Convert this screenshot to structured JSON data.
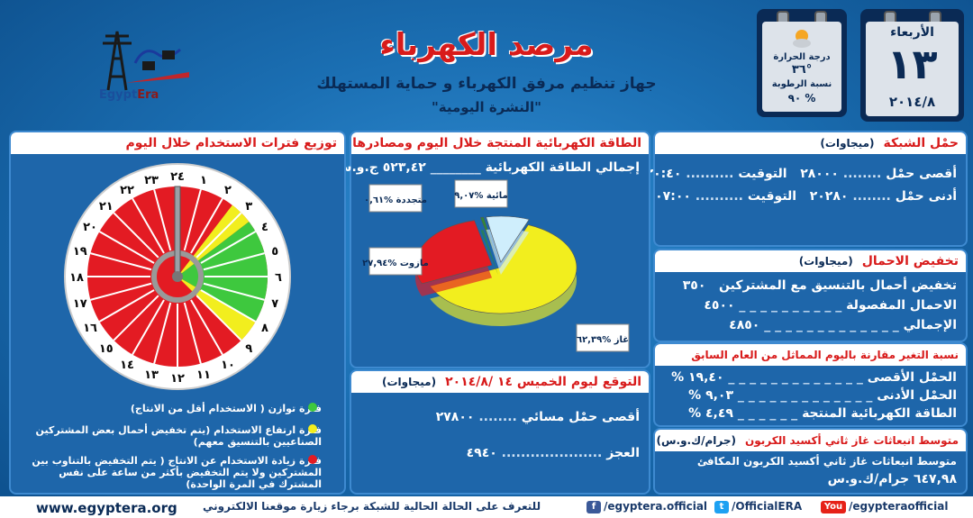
{
  "header": {
    "title": "مرصد الكهرباء",
    "subtitle": "جهاز تنظيم مرفق الكهرباء و حماية المستهلك",
    "bulletin": "\"النشرة اليومية\"",
    "logo_text_a": "Egypt",
    "logo_text_b": "Era"
  },
  "calendar": {
    "day_name": "الأربعاء",
    "day": "١٣",
    "month_year": "٢٠١٤/٨"
  },
  "weather": {
    "temp_label": "درجة الحرارة",
    "temp_value": "٣٦°",
    "humidity_label": "نسبة الرطوبة",
    "humidity_value": "٩٠ %",
    "icon": "sun-cloud-icon"
  },
  "grid_load": {
    "title": "حمْل الشبكة",
    "unit": "(ميجاوات)",
    "max_label": "أقصى حمْل",
    "max_value": "٢٨٠٠٠",
    "max_time_label": "التوقيت",
    "max_time": "٢٠:٤٠",
    "min_label": "أدنى حمْل",
    "min_value": "٢٠٢٨٠",
    "min_time_label": "التوقيت",
    "min_time": "٠٧:٠٠"
  },
  "load_shedding": {
    "title": "تخفيض الاحمال",
    "unit": "(ميجاوات)",
    "coord_label": "تخفيض أحمال بالتنسيق مع المشتركين",
    "coord_value": "٣٥٠",
    "cut_label": "الاحمال المفصولة",
    "cut_value": "٤٥٠٠",
    "total_label": "الإجمالي",
    "total_value": "٤٨٥٠"
  },
  "change": {
    "title": "نسبة التغير مقارنة باليوم المماثل من العام السابق",
    "max_label": "الحمْل الأقصى",
    "max_value": "١٩,٤٠ %",
    "min_label": "الحمْل الأدنى",
    "min_value": "٩,٠٣ %",
    "energy_label": "الطاقة الكهربائية المنتجة",
    "energy_value": "٤,٤٩ %"
  },
  "co2": {
    "title": "متوسط انبعاثات غاز ثاني أكسيد الكربون",
    "unit": "(جرام/ك.و.س)",
    "line": "متوسط انبعاثات غاز ثاني أكسيد الكربون المكافئ",
    "value": "٦٤٧,٩٨ جرام/ك.و.س"
  },
  "energy": {
    "title": "الطاقة الكهربائية المنتجة خلال اليوم ومصادرها",
    "total_label": "إجمالي الطاقة الكهربائية",
    "total_value": "٥٢٣,٤٢ ج.و.س"
  },
  "chart_data": {
    "type": "pie",
    "title": "الطاقة الكهربائية المنتجة خلال اليوم ومصادرها",
    "categories": [
      "غاز",
      "مازوت",
      "متجددة",
      "مائية"
    ],
    "values": [
      62.39,
      27.94,
      0.61,
      9.07
    ],
    "labels": [
      "غاز %٦٢,٣٩",
      "مازوت %٢٧,٩٤",
      "متجددة %٠,٦١",
      "مائية %٩,٠٧"
    ],
    "colors": [
      "#f2ee1e",
      "#e31b23",
      "#2e8b3a",
      "#cfeefc"
    ]
  },
  "forecast": {
    "title": "التوقع ليوم الخميس ١٤ /٢٠١٤/٨",
    "unit": "(ميجاوات)",
    "peak_label": "أقصى حمْل مسائي",
    "peak_value": "٢٧٨٠٠",
    "deficit_label": "العجز",
    "deficit_value": "٤٩٤٠"
  },
  "clock": {
    "title": "توزيع فترات الاستخدام خلال اليوم",
    "hours": [
      "٢٤",
      "١",
      "٢",
      "٣",
      "٤",
      "٥",
      "٦",
      "٧",
      "٨",
      "٩",
      "١٠",
      "١١",
      "١٢",
      "١٣",
      "١٤",
      "١٥",
      "١٦",
      "١٧",
      "١٨",
      "١٩",
      "٢٠",
      "٢١",
      "٢٢",
      "٢٣"
    ],
    "legend": [
      {
        "text": "فترة توازن ( الاستخدام أقل من الانتاج)",
        "color": "#3ec83e"
      },
      {
        "text": "فترة ارتفاع الاستخدام (يتم تخفيض أحمال بعض المشتركين الصناعيين بالتنسيق معهم)",
        "color": "#f2ee1e"
      },
      {
        "text": "فترة زيادة الاستخدام عن الانتاج ( يتم التخفيض بالتناوب بين المشتركين ولا يتم التخفيض بأكثر من ساعة على نفس المشترك في المرة الواحدة)",
        "color": "#e31b23"
      }
    ]
  },
  "footer": {
    "website": "www.egyptera.org",
    "visit": "للتعرف على الحالة الحالية للشبكة برجاء زيارة موقعنا الالكتروني",
    "facebook": "/egyptera.official",
    "twitter": "/OfficialERA",
    "youtube": "/egypteraofficial",
    "fb_icon": "f",
    "tw_icon": "t",
    "yt_icon": "You"
  }
}
